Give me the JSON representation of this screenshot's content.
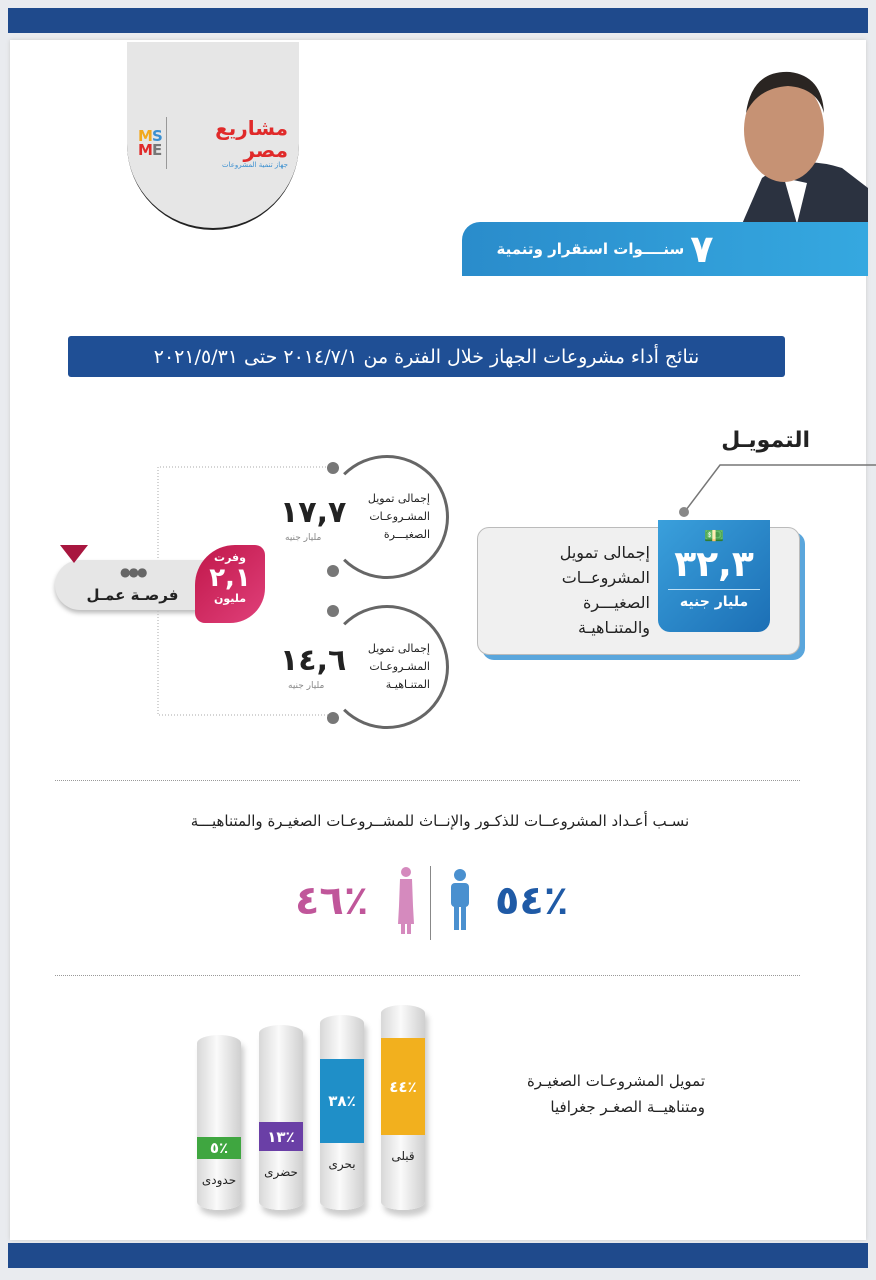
{
  "header": {
    "logo": {
      "arabic": "مشاريع مصر",
      "latin": [
        "MS",
        "ME"
      ],
      "tagline": "جهاز تنمية المشروعات"
    },
    "banner_number": "٧",
    "banner_text": "سنــــوات استقرار وتنمية"
  },
  "title": "نتائج أداء مشروعات الجهاز خلال الفترة من ٢٠١٤/٧/١ حتى ٢٠٢١/٥/٣١",
  "financing": {
    "heading": "التمويـل",
    "total": {
      "value": "٣٢,٣",
      "unit": "مليار جنيه",
      "label_lines": [
        "إجمالى تمويل",
        "المشروعــات",
        "الصغيـــرة",
        "والمتنـاهيـة"
      ]
    },
    "small": {
      "value": "١٧,٧",
      "unit": "مليار جنيه",
      "label_lines": [
        "إجمالى تمويل",
        "المشـروعـات",
        "الصغيـــرة"
      ]
    },
    "micro": {
      "value": "١٤,٦",
      "unit": "مليار جنيه",
      "label_lines": [
        "إجمالى تمويل",
        "المشـروعـات",
        "المتنـاهيـة"
      ]
    },
    "jobs": {
      "prefix": "وفرت",
      "value": "٢,١",
      "unit": "مليون",
      "label": "فرصـة عمـل"
    }
  },
  "gender": {
    "subtitle": "نسـب أعـداد المشروعــات للذكـور والإنــاث للمشــروعـات الصغيـرة والمتناهيـــة",
    "male": {
      "value": "٥٤٪",
      "color": "#1f5aa6",
      "icon": "male-icon"
    },
    "female": {
      "value": "٤٦٪",
      "color": "#c0569a",
      "icon": "female-icon"
    }
  },
  "geography": {
    "caption_lines": [
      "تمويل المشروعـات الصغيـرة",
      "ومتناهيــة الصغـر جغرافيا"
    ],
    "regions": [
      {
        "name": "قبلى",
        "value": "٤٤٪",
        "percent": 44,
        "color": "#f2b01e"
      },
      {
        "name": "بحرى",
        "value": "٣٨٪",
        "percent": 38,
        "color": "#1f8fc8"
      },
      {
        "name": "حضرى",
        "value": "١٣٪",
        "percent": 13,
        "color": "#6a3fa6"
      },
      {
        "name": "حدودى",
        "value": "٥٪",
        "percent": 5,
        "color": "#3fa640"
      }
    ]
  }
}
